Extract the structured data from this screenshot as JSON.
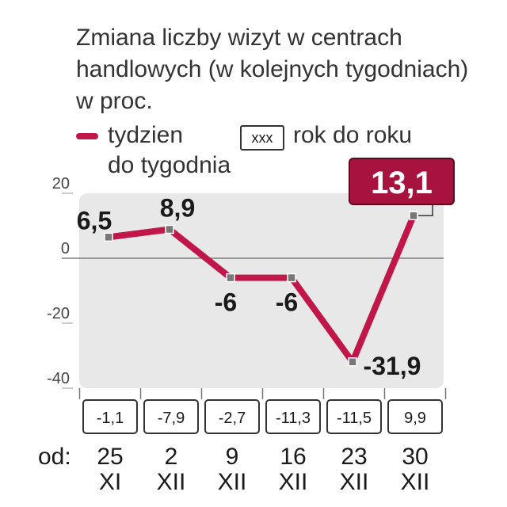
{
  "title_lines": [
    "Zmiana liczby wizyt w centrach",
    "handlowych (w kolejnych tygodniach)",
    "w proc."
  ],
  "legend": {
    "series_line_1": "tydzien",
    "series_line_2": "do tygodnia",
    "box_sample": "xxx",
    "box_label": "rok do roku"
  },
  "colors": {
    "line": "#c0164a",
    "highlight_box": "#a8123e",
    "plot_bg": "#e8e8e8"
  },
  "chart_data": {
    "type": "line",
    "x_prefix": "od:",
    "categories": [
      {
        "day": "25",
        "month": "XI"
      },
      {
        "day": "2",
        "month": "XII"
      },
      {
        "day": "9",
        "month": "XII"
      },
      {
        "day": "16",
        "month": "XII"
      },
      {
        "day": "23",
        "month": "XII"
      },
      {
        "day": "30",
        "month": "XII"
      }
    ],
    "series": [
      {
        "name": "tydzien do tygodnia",
        "values": [
          6.5,
          8.9,
          -6,
          -6,
          -31.9,
          13.1
        ],
        "labels": [
          "6,5",
          "8,9",
          "-6",
          "-6",
          "-31,9",
          "13,1"
        ]
      },
      {
        "name": "rok do roku",
        "values": [
          -1.1,
          -7.9,
          -2.7,
          -11.3,
          -11.5,
          9.9
        ],
        "labels": [
          "-1,1",
          "-7,9",
          "-2,7",
          "-11,3",
          "-11,5",
          "9,9"
        ]
      }
    ],
    "highlighted_point_index": 5,
    "ylim": [
      -40,
      20
    ],
    "yticks": [
      20,
      0,
      -20,
      -40
    ],
    "ytick_labels": [
      "20",
      "0",
      "-20",
      "-40"
    ],
    "grid": false
  }
}
